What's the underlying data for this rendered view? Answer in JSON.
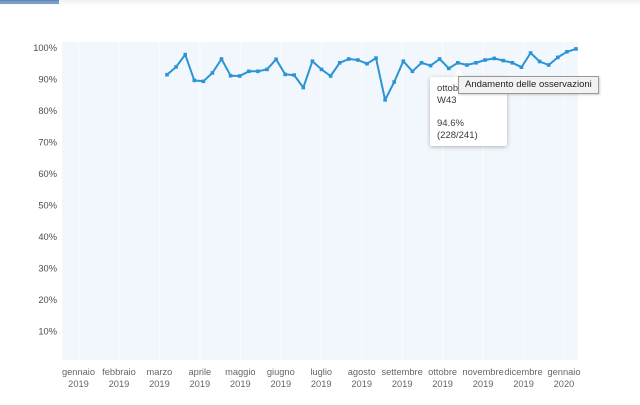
{
  "top_bar": {
    "color": "#7b9cc7"
  },
  "chart_data": {
    "type": "line",
    "title": "Andamento delle osservazioni",
    "ylabel": "",
    "xlabel": "",
    "unit": "%",
    "ylim": [
      0,
      100
    ],
    "grid": "vertical-month-lines",
    "legend_position": "none",
    "y_tick_labels": [
      "100%",
      "90%",
      "80%",
      "70%",
      "60%",
      "50%",
      "40%",
      "30%",
      "20%",
      "10%"
    ],
    "y_tick_values": [
      100,
      90,
      80,
      70,
      60,
      50,
      40,
      30,
      20,
      10
    ],
    "x_categories": [
      {
        "month": "gennaio",
        "year": "2019"
      },
      {
        "month": "febbraio",
        "year": "2019"
      },
      {
        "month": "marzo",
        "year": "2019"
      },
      {
        "month": "aprile",
        "year": "2019"
      },
      {
        "month": "maggio",
        "year": "2019"
      },
      {
        "month": "giugno",
        "year": "2019"
      },
      {
        "month": "luglio",
        "year": "2019"
      },
      {
        "month": "agosto",
        "year": "2019"
      },
      {
        "month": "settembre",
        "year": "2019"
      },
      {
        "month": "ottobre",
        "year": "2019"
      },
      {
        "month": "novembre",
        "year": "2019"
      },
      {
        "month": "dicembre",
        "year": "2019"
      },
      {
        "month": "gennaio",
        "year": "2020"
      }
    ],
    "series": [
      {
        "name": "Andamento delle osservazioni",
        "color": "#2a94d4",
        "cadence": "weekly",
        "values": [
          91.5,
          94,
          97.9,
          89.7,
          89.4,
          92.1,
          96.5,
          91.2,
          91.1,
          92.6,
          92.6,
          93.2,
          96.4,
          91.6,
          91.4,
          87.4,
          95.8,
          93.2,
          91.1,
          95.3,
          96.5,
          96.2,
          95,
          96.8,
          83.5,
          89.2,
          95.8,
          92.6,
          95.3,
          94.4,
          96.5,
          93.5,
          95.3,
          94.6,
          95.3,
          96.2,
          96.7,
          96,
          95.3,
          93.9,
          98.4,
          95.7,
          94.6,
          97,
          98.8,
          99.7
        ]
      }
    ],
    "hovered_point": {
      "index": 33,
      "value_label": "94.6%"
    }
  },
  "tooltip": {
    "date_label": "ottobre 2019",
    "week_label": "W43",
    "value": "94.6%",
    "fraction": "(228/241)"
  },
  "native_tooltip": {
    "text": "Andamento delle osservazioni"
  }
}
